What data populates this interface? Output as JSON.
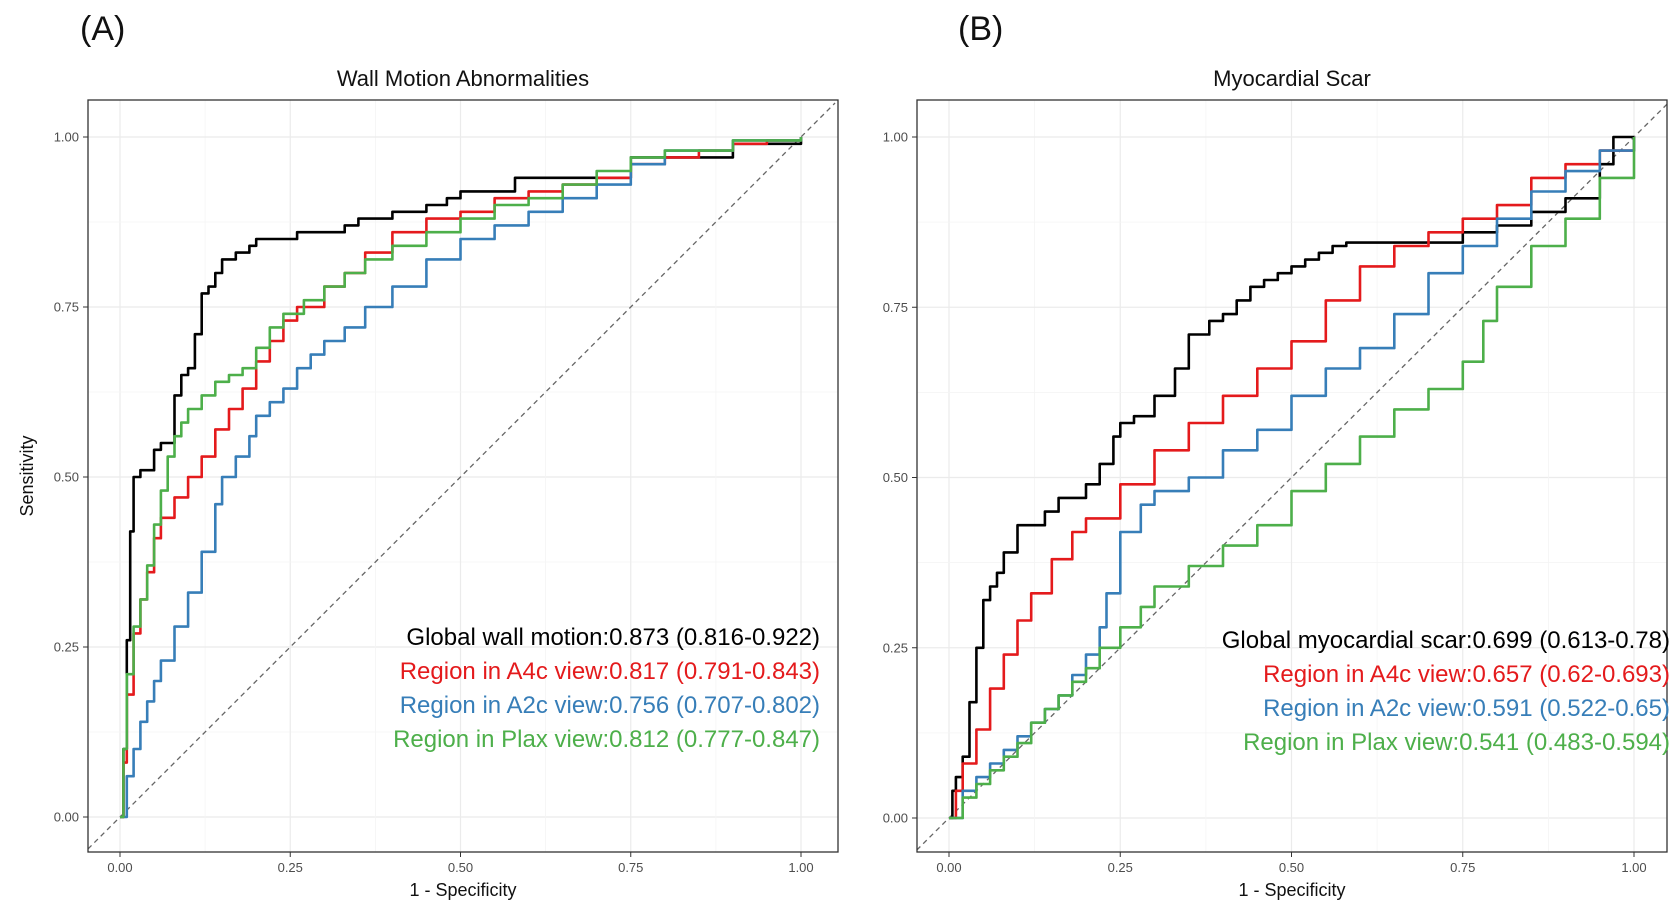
{
  "panels": [
    {
      "letter": "(A)"
    },
    {
      "letter": "(B)"
    }
  ],
  "chart_data": [
    {
      "type": "line",
      "title": "Wall Motion Abnormalities",
      "xlabel": "1 - Specificity",
      "ylabel": "Sensitivity",
      "xlim": [
        0,
        1
      ],
      "ylim": [
        0,
        1
      ],
      "xticks": [
        "0.00",
        "0.25",
        "0.50",
        "0.75",
        "1.00"
      ],
      "yticks": [
        "0.00",
        "0.25",
        "0.50",
        "0.75",
        "1.00"
      ],
      "grid": true,
      "reference_line": "diagonal",
      "series": [
        {
          "name": "Global wall motion",
          "color": "#000000",
          "annotation": {
            "label": "Global wall motion:0.873",
            "ci": "(0.816-0.922)"
          },
          "x": [
            0,
            0.005,
            0.01,
            0.015,
            0.02,
            0.025,
            0.03,
            0.04,
            0.05,
            0.06,
            0.07,
            0.08,
            0.09,
            0.1,
            0.11,
            0.12,
            0.13,
            0.14,
            0.15,
            0.17,
            0.19,
            0.2,
            0.23,
            0.26,
            0.32,
            0.33,
            0.35,
            0.38,
            0.4,
            0.43,
            0.45,
            0.48,
            0.5,
            0.58,
            0.75,
            0.9,
            1.0
          ],
          "y": [
            0,
            0.1,
            0.26,
            0.42,
            0.5,
            0.5,
            0.51,
            0.51,
            0.54,
            0.55,
            0.55,
            0.62,
            0.65,
            0.66,
            0.71,
            0.77,
            0.78,
            0.8,
            0.82,
            0.83,
            0.84,
            0.85,
            0.85,
            0.86,
            0.86,
            0.87,
            0.88,
            0.88,
            0.89,
            0.89,
            0.9,
            0.91,
            0.92,
            0.94,
            0.97,
            0.99,
            1.0
          ]
        },
        {
          "name": "Region in A4c view",
          "color": "#E41A1C",
          "annotation": {
            "label": "Region in A4c view:0.817",
            "ci": "(0.791-0.843)"
          },
          "x": [
            0,
            0.005,
            0.01,
            0.02,
            0.03,
            0.04,
            0.05,
            0.06,
            0.08,
            0.1,
            0.12,
            0.14,
            0.16,
            0.18,
            0.2,
            0.22,
            0.24,
            0.26,
            0.3,
            0.33,
            0.36,
            0.4,
            0.45,
            0.5,
            0.55,
            0.6,
            0.65,
            0.7,
            0.75,
            0.8,
            0.85,
            0.9,
            0.95,
            1.0
          ],
          "y": [
            0,
            0.08,
            0.18,
            0.27,
            0.32,
            0.36,
            0.41,
            0.44,
            0.47,
            0.5,
            0.53,
            0.57,
            0.6,
            0.63,
            0.67,
            0.7,
            0.73,
            0.75,
            0.78,
            0.8,
            0.83,
            0.86,
            0.88,
            0.89,
            0.91,
            0.92,
            0.93,
            0.94,
            0.96,
            0.97,
            0.98,
            0.99,
            0.995,
            1.0
          ]
        },
        {
          "name": "Region in A2c view",
          "color": "#377EB8",
          "annotation": {
            "label": "Region in A2c view:0.756",
            "ci": "(0.707-0.802)"
          },
          "x": [
            0,
            0.01,
            0.02,
            0.03,
            0.04,
            0.05,
            0.06,
            0.08,
            0.1,
            0.12,
            0.14,
            0.15,
            0.17,
            0.19,
            0.2,
            0.22,
            0.24,
            0.26,
            0.28,
            0.3,
            0.33,
            0.36,
            0.4,
            0.45,
            0.5,
            0.55,
            0.6,
            0.65,
            0.7,
            0.75,
            0.8,
            0.9,
            1.0
          ],
          "y": [
            0,
            0.06,
            0.1,
            0.14,
            0.17,
            0.2,
            0.23,
            0.28,
            0.33,
            0.39,
            0.46,
            0.5,
            0.53,
            0.56,
            0.59,
            0.61,
            0.63,
            0.66,
            0.68,
            0.7,
            0.72,
            0.75,
            0.78,
            0.82,
            0.85,
            0.87,
            0.89,
            0.91,
            0.93,
            0.96,
            0.98,
            0.995,
            1.0
          ]
        },
        {
          "name": "Region in Plax view",
          "color": "#4DAF4A",
          "annotation": {
            "label": "Region in Plax view:0.812",
            "ci": "(0.777-0.847)"
          },
          "x": [
            0,
            0.005,
            0.01,
            0.02,
            0.03,
            0.04,
            0.05,
            0.06,
            0.07,
            0.08,
            0.09,
            0.1,
            0.12,
            0.14,
            0.16,
            0.18,
            0.2,
            0.22,
            0.24,
            0.27,
            0.3,
            0.33,
            0.36,
            0.4,
            0.45,
            0.5,
            0.55,
            0.6,
            0.65,
            0.7,
            0.75,
            0.8,
            0.9,
            1.0
          ],
          "y": [
            0,
            0.1,
            0.21,
            0.28,
            0.32,
            0.37,
            0.43,
            0.48,
            0.53,
            0.56,
            0.58,
            0.6,
            0.62,
            0.64,
            0.65,
            0.66,
            0.69,
            0.72,
            0.74,
            0.76,
            0.78,
            0.8,
            0.82,
            0.84,
            0.86,
            0.88,
            0.9,
            0.91,
            0.93,
            0.95,
            0.97,
            0.98,
            0.995,
            1.0
          ]
        }
      ]
    },
    {
      "type": "line",
      "title": "Myocardial Scar",
      "xlabel": "1 - Specificity",
      "ylabel": "",
      "xlim": [
        0,
        1
      ],
      "ylim": [
        0,
        1
      ],
      "xticks": [
        "0.00",
        "0.25",
        "0.50",
        "0.75",
        "1.00"
      ],
      "yticks": [
        "0.00",
        "0.25",
        "0.50",
        "0.75",
        "1.00"
      ],
      "grid": true,
      "reference_line": "diagonal",
      "series": [
        {
          "name": "Global myocardial scar",
          "color": "#000000",
          "annotation": {
            "label": "Global myocardial scar:0.699",
            "ci": "(0.613-0.78)"
          },
          "x": [
            0,
            0.005,
            0.01,
            0.02,
            0.03,
            0.04,
            0.05,
            0.06,
            0.07,
            0.08,
            0.1,
            0.12,
            0.14,
            0.16,
            0.18,
            0.2,
            0.22,
            0.24,
            0.25,
            0.27,
            0.3,
            0.33,
            0.35,
            0.38,
            0.4,
            0.42,
            0.44,
            0.46,
            0.48,
            0.5,
            0.52,
            0.54,
            0.56,
            0.58,
            0.6,
            0.65,
            0.7,
            0.75,
            0.8,
            0.85,
            0.9,
            0.95,
            0.97,
            1.0
          ],
          "y": [
            0,
            0.04,
            0.06,
            0.09,
            0.17,
            0.25,
            0.32,
            0.34,
            0.36,
            0.39,
            0.43,
            0.43,
            0.45,
            0.47,
            0.47,
            0.49,
            0.52,
            0.56,
            0.58,
            0.59,
            0.62,
            0.66,
            0.71,
            0.73,
            0.74,
            0.76,
            0.78,
            0.79,
            0.8,
            0.81,
            0.82,
            0.83,
            0.84,
            0.845,
            0.845,
            0.845,
            0.845,
            0.86,
            0.87,
            0.89,
            0.91,
            0.96,
            1.0,
            1.0
          ]
        },
        {
          "name": "Region in A4c view",
          "color": "#E41A1C",
          "annotation": {
            "label": "Region in A4c view:0.657",
            "ci": "(0.62-0.693)"
          },
          "x": [
            0,
            0.01,
            0.02,
            0.04,
            0.06,
            0.08,
            0.1,
            0.12,
            0.15,
            0.18,
            0.2,
            0.25,
            0.3,
            0.35,
            0.4,
            0.45,
            0.5,
            0.55,
            0.6,
            0.65,
            0.7,
            0.75,
            0.8,
            0.85,
            0.9,
            0.95,
            1.0
          ],
          "y": [
            0,
            0.04,
            0.08,
            0.13,
            0.19,
            0.24,
            0.29,
            0.33,
            0.38,
            0.42,
            0.44,
            0.49,
            0.54,
            0.58,
            0.62,
            0.66,
            0.7,
            0.76,
            0.81,
            0.84,
            0.86,
            0.88,
            0.9,
            0.94,
            0.96,
            0.98,
            1.0
          ]
        },
        {
          "name": "Region in A2c view",
          "color": "#377EB8",
          "annotation": {
            "label": "Region in A2c view:0.591",
            "ci": "(0.522-0.65)"
          },
          "x": [
            0,
            0.02,
            0.04,
            0.06,
            0.08,
            0.1,
            0.12,
            0.14,
            0.16,
            0.18,
            0.2,
            0.22,
            0.23,
            0.25,
            0.28,
            0.3,
            0.35,
            0.4,
            0.45,
            0.5,
            0.55,
            0.6,
            0.65,
            0.7,
            0.75,
            0.8,
            0.85,
            0.9,
            0.95,
            1.0
          ],
          "y": [
            0,
            0.04,
            0.06,
            0.08,
            0.1,
            0.12,
            0.14,
            0.16,
            0.18,
            0.21,
            0.24,
            0.28,
            0.33,
            0.42,
            0.46,
            0.48,
            0.5,
            0.54,
            0.57,
            0.62,
            0.66,
            0.69,
            0.74,
            0.8,
            0.84,
            0.88,
            0.92,
            0.95,
            0.98,
            1.0
          ]
        },
        {
          "name": "Region in Plax view",
          "color": "#4DAF4A",
          "annotation": {
            "label": "Region in Plax view:0.541",
            "ci": "(0.483-0.594)"
          },
          "x": [
            0,
            0.02,
            0.04,
            0.06,
            0.08,
            0.1,
            0.12,
            0.14,
            0.16,
            0.18,
            0.2,
            0.22,
            0.25,
            0.28,
            0.3,
            0.35,
            0.4,
            0.45,
            0.5,
            0.55,
            0.6,
            0.65,
            0.7,
            0.75,
            0.78,
            0.8,
            0.85,
            0.9,
            0.95,
            1.0
          ],
          "y": [
            0,
            0.03,
            0.05,
            0.07,
            0.09,
            0.11,
            0.14,
            0.16,
            0.18,
            0.2,
            0.22,
            0.25,
            0.28,
            0.31,
            0.34,
            0.37,
            0.4,
            0.43,
            0.48,
            0.52,
            0.56,
            0.6,
            0.63,
            0.67,
            0.73,
            0.78,
            0.84,
            0.88,
            0.94,
            1.0
          ]
        }
      ]
    }
  ]
}
